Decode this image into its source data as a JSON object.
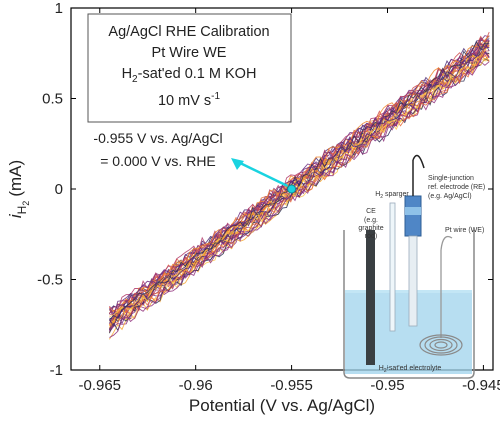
{
  "chart_data": {
    "type": "line",
    "title": "",
    "xlabel": "Potential (V vs. Ag/AgCl)",
    "ylabel": "i",
    "ylabel_sub": "H",
    "ylabel_subsub": "2",
    "ylabel_unit": "(mA)",
    "xlim": [
      -0.9665,
      -0.9445
    ],
    "ylim": [
      -1,
      1
    ],
    "x_ticks": [
      -0.965,
      -0.96,
      -0.955,
      -0.95,
      -0.945
    ],
    "x_tick_labels": [
      "-0.965",
      "-0.96",
      "-0.955",
      "-0.95",
      "-0.945"
    ],
    "y_ticks": [
      -1,
      -0.5,
      0,
      0.5,
      1
    ],
    "y_tick_labels": [
      "-1",
      "-0.5",
      "0",
      "0.5",
      "1"
    ],
    "grid": false,
    "legend_box": {
      "line1": "Ag/AgCl RHE Calibration",
      "line2": "Pt Wire WE",
      "line3_pre": "H",
      "line3_sub": "2",
      "line3_post": "-sat'ed 0.1 M KOH",
      "line4_pre": "10 mV s",
      "line4_sup": "-1"
    },
    "annotation": {
      "line1": "-0.955 V vs. Ag/AgCl",
      "line2": "= 0.000 V vs. RHE",
      "point": {
        "x": -0.955,
        "y": 0.0
      },
      "color": "#19d3e0"
    },
    "series_band": {
      "x_start": -0.9645,
      "x_end": -0.9447,
      "slope_mA_per_V": 76.5,
      "zero_crossing_x": -0.955,
      "curve_count": 34,
      "colors": [
        "#2b2d52",
        "#4a2a73",
        "#6c2a7f",
        "#8e2e7a",
        "#b03a6a",
        "#d04d4f",
        "#e6683a",
        "#f0862d",
        "#f6a62e",
        "#fbc44a"
      ]
    },
    "inset": {
      "labels": {
        "sparger": "H",
        "sparger_sub": "2",
        "sparger_post": " sparger",
        "ce": "CE",
        "ce_note1": "(e.g.",
        "ce_note2": "graphite",
        "ce_note3": "rod)",
        "re1": "Single-junction",
        "re2": "ref. electrode (RE)",
        "re3": "(e.g. Ag/AgCl)",
        "we": "Pt wire (WE)",
        "electrolyte_pre": "H",
        "electrolyte_sub": "2",
        "electrolyte_post": "-sat'ed electrolyte"
      }
    }
  }
}
